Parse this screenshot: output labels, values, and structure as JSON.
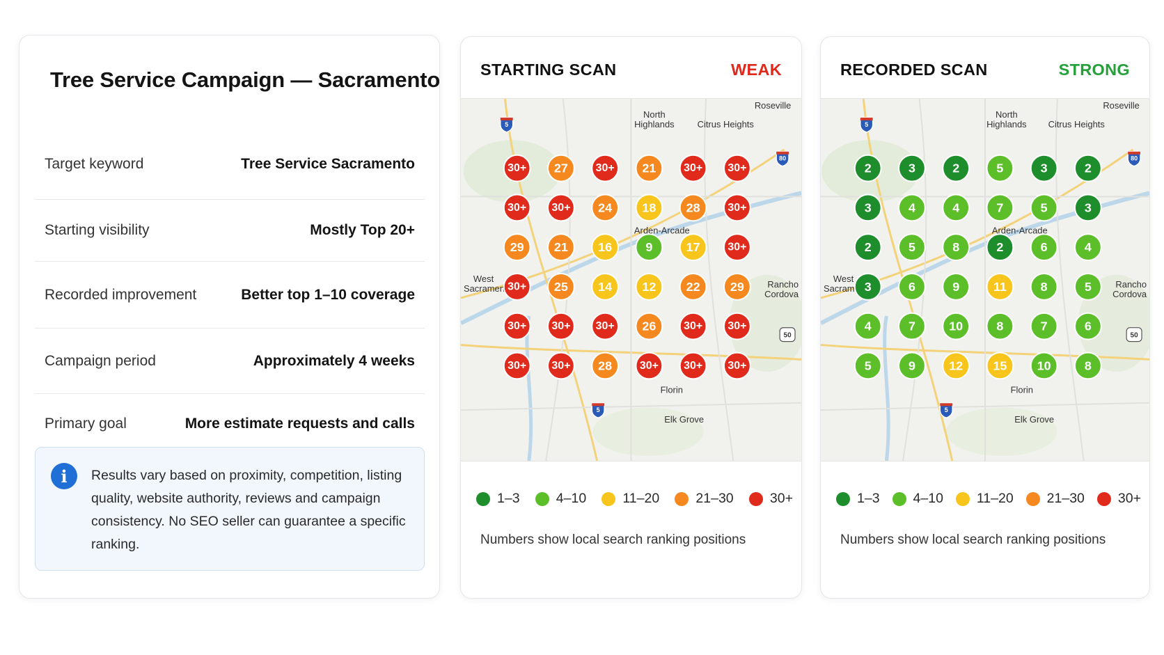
{
  "summary": {
    "title": "Tree Service Campaign — Sacramento",
    "rows": [
      {
        "label": "Target keyword",
        "value": "Tree Service Sacramento"
      },
      {
        "label": "Starting visibility",
        "value": "Mostly Top 20+"
      },
      {
        "label": "Recorded improvement",
        "value": "Better top 1–10 coverage"
      },
      {
        "label": "Campaign period",
        "value": "Approximately 4 weeks"
      },
      {
        "label": "Primary goal",
        "value": "More estimate requests and calls"
      }
    ],
    "note_icon": "i",
    "note": "Results vary based on proximity, competition, listing quality, website authority, reviews and campaign consistency. No SEO seller can guarantee a specific ranking."
  },
  "colors": {
    "1-3": "#1e8e2c",
    "4-10": "#5cbf2a",
    "11-20": "#f7c51c",
    "21-30": "#f5891f",
    "30+": "#e02a1b",
    "weak": "#e0281c",
    "strong": "#26a03a"
  },
  "legend": [
    {
      "key": "1-3",
      "label": "1–3"
    },
    {
      "key": "4-10",
      "label": "4–10"
    },
    {
      "key": "11-20",
      "label": "11–20"
    },
    {
      "key": "21-30",
      "label": "21–30"
    },
    {
      "key": "30+",
      "label": "30+"
    }
  ],
  "map_places": {
    "roseville": "Roseville",
    "north": "North",
    "highlands": "Highlands",
    "citrus_heights": "Citrus Heights",
    "arden_arcade": "Arden-Arcade",
    "west": "West",
    "sacramento": "Sacramento",
    "rancho": "Rancho",
    "cordova": "Cordova",
    "florin": "Florin",
    "elk_grove": "Elk Grove",
    "i5": "5",
    "i80": "80",
    "us50": "50"
  },
  "scans": {
    "start": {
      "title": "STARTING SCAN",
      "status": "WEAK",
      "grid": [
        [
          "30+",
          "27",
          "30+",
          "21",
          "30+",
          "30+"
        ],
        [
          "30+",
          "30+",
          "24",
          "18",
          "28",
          "30+"
        ],
        [
          "29",
          "21",
          "16",
          "9",
          "17",
          "30+"
        ],
        [
          "30+",
          "25",
          "14",
          "12",
          "22",
          "29"
        ],
        [
          "30+",
          "30+",
          "30+",
          "26",
          "30+",
          "30+"
        ],
        [
          "30+",
          "30+",
          "28",
          "30+",
          "30+",
          "30+"
        ]
      ],
      "footnote": "Numbers show local search ranking positions"
    },
    "record": {
      "title": "RECORDED SCAN",
      "status": "STRONG",
      "grid": [
        [
          "2",
          "3",
          "2",
          "5",
          "3",
          "2"
        ],
        [
          "3",
          "4",
          "4",
          "7",
          "5",
          "3"
        ],
        [
          "2",
          "5",
          "8",
          "2",
          "6",
          "4"
        ],
        [
          "3",
          "6",
          "9",
          "11",
          "8",
          "5"
        ],
        [
          "4",
          "7",
          "10",
          "8",
          "7",
          "6"
        ],
        [
          "5",
          "9",
          "12",
          "15",
          "10",
          "8"
        ]
      ],
      "footnote": "Numbers show local search ranking positions"
    }
  }
}
